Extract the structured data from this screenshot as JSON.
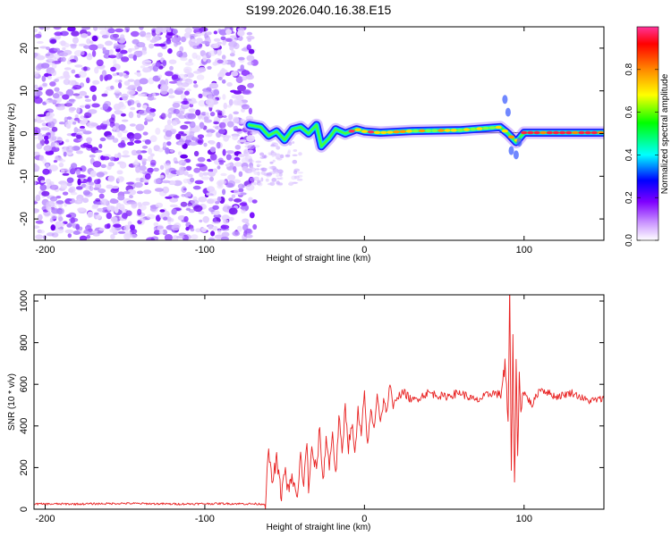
{
  "title": "S199.2026.040.16.38.E15",
  "chart_data": [
    {
      "type": "heatmap",
      "name": "spectrogram",
      "xlabel": "Height of straight line (km)",
      "ylabel": "Frequency (Hz)",
      "xlim": [
        -207,
        150
      ],
      "ylim": [
        -25,
        25
      ],
      "xticks": [
        -200,
        -100,
        0,
        100
      ],
      "xtick_labels": [
        "-200",
        "-100",
        "0",
        "100"
      ],
      "yticks": [
        -20,
        -10,
        0,
        10,
        20
      ],
      "ytick_labels": [
        "-20",
        "-10",
        "0",
        "10",
        "20"
      ],
      "noise_region_x": [
        -207,
        -72
      ],
      "signal_line_frequency": 0.2,
      "signal_ridge": [
        {
          "x": -72,
          "f": 2
        },
        {
          "x": -65,
          "f": 1.5
        },
        {
          "x": -60,
          "f": -0.5
        },
        {
          "x": -55,
          "f": 0.5
        },
        {
          "x": -50,
          "f": -1.5
        },
        {
          "x": -45,
          "f": 1
        },
        {
          "x": -40,
          "f": 1.5
        },
        {
          "x": -35,
          "f": 0
        },
        {
          "x": -30,
          "f": 2
        },
        {
          "x": -27,
          "f": -3
        },
        {
          "x": -22,
          "f": -1
        },
        {
          "x": -18,
          "f": 1
        },
        {
          "x": -12,
          "f": 0
        },
        {
          "x": -5,
          "f": 1
        },
        {
          "x": 0,
          "f": 0.5
        },
        {
          "x": 10,
          "f": 0.2
        },
        {
          "x": 30,
          "f": 0.6
        },
        {
          "x": 60,
          "f": 0.8
        },
        {
          "x": 85,
          "f": 1.5
        },
        {
          "x": 90,
          "f": 0
        },
        {
          "x": 95,
          "f": -2
        },
        {
          "x": 100,
          "f": 0.2
        },
        {
          "x": 150,
          "f": 0.2
        }
      ],
      "colorbar": {
        "label": "Normalized spectral amplitude",
        "range": [
          0,
          1
        ],
        "ticks": [
          0.0,
          0.2,
          0.4,
          0.6,
          0.8
        ],
        "tick_labels": [
          "0.0",
          "0.2",
          "0.4",
          "0.6",
          "0.8"
        ],
        "colors": [
          "#ffffff",
          "#cc99ff",
          "#7f00ff",
          "#0000ff",
          "#00ffff",
          "#00ff00",
          "#ffff00",
          "#ff8800",
          "#ff0000",
          "#ff3399"
        ]
      }
    },
    {
      "type": "line",
      "name": "snr",
      "xlabel": "Height of straight line (km)",
      "ylabel": "SNR (10 * v/v)",
      "xlim": [
        -207,
        150
      ],
      "ylim": [
        0,
        1030
      ],
      "xticks": [
        -200,
        -100,
        0,
        100
      ],
      "xtick_labels": [
        "-200",
        "-100",
        "0",
        "100"
      ],
      "yticks": [
        0,
        200,
        400,
        600,
        800,
        1000
      ],
      "ytick_labels": [
        "0",
        "200",
        "400",
        "600",
        "800",
        "1000"
      ],
      "line_color": "#e82020",
      "series": [
        {
          "name": "SNR",
          "x": [
            -207,
            -180,
            -150,
            -120,
            -90,
            -62,
            -60,
            -58,
            -55,
            -52,
            -50,
            -48,
            -45,
            -42,
            -40,
            -38,
            -36,
            -35,
            -33,
            -30,
            -28,
            -26,
            -24,
            -22,
            -20,
            -18,
            -16,
            -14,
            -12,
            -10,
            -8,
            -6,
            -4,
            -2,
            0,
            2,
            4,
            6,
            8,
            10,
            12,
            14,
            16,
            18,
            20,
            25,
            30,
            40,
            50,
            60,
            70,
            80,
            85,
            88,
            90,
            91,
            92,
            93,
            94,
            95,
            96,
            97,
            98,
            100,
            105,
            110,
            120,
            130,
            140,
            150
          ],
          "y": [
            25,
            25,
            28,
            25,
            27,
            25,
            290,
            120,
            240,
            60,
            200,
            90,
            150,
            40,
            260,
            110,
            330,
            100,
            280,
            180,
            400,
            120,
            350,
            200,
            380,
            150,
            440,
            260,
            500,
            300,
            420,
            250,
            470,
            340,
            560,
            300,
            480,
            380,
            560,
            420,
            520,
            470,
            600,
            480,
            540,
            560,
            520,
            560,
            540,
            560,
            520,
            560,
            550,
            680,
            420,
            1030,
            150,
            880,
            80,
            700,
            250,
            620,
            520,
            560,
            500,
            580,
            540,
            560,
            520,
            530
          ]
        }
      ]
    }
  ]
}
